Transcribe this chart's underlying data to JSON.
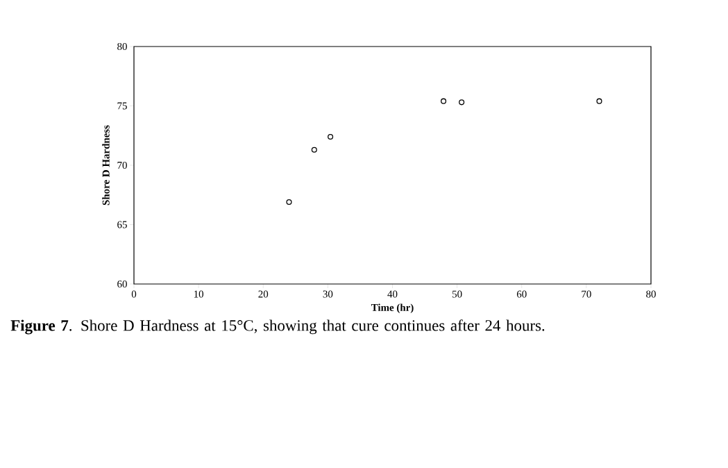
{
  "chart_data": {
    "type": "scatter",
    "xlabel": "Time (hr)",
    "ylabel": "Shore D Hardness",
    "x": [
      24,
      27.9,
      30.4,
      47.9,
      50.7,
      72
    ],
    "values": [
      66.9,
      71.3,
      72.4,
      75.4,
      75.3,
      75.4
    ],
    "color": "#000000",
    "marker": "circle",
    "xlim": [
      0,
      80
    ],
    "xticks": [
      0,
      10,
      20,
      30,
      40,
      50,
      60,
      70,
      80
    ],
    "ylim": [
      60,
      80
    ],
    "yticks": [
      60,
      65,
      70,
      75,
      80
    ],
    "annotations": [
      "**Figure 7**. Shore D Hardness at 15°C, showing that cure continues after 24 hours."
    ]
  }
}
